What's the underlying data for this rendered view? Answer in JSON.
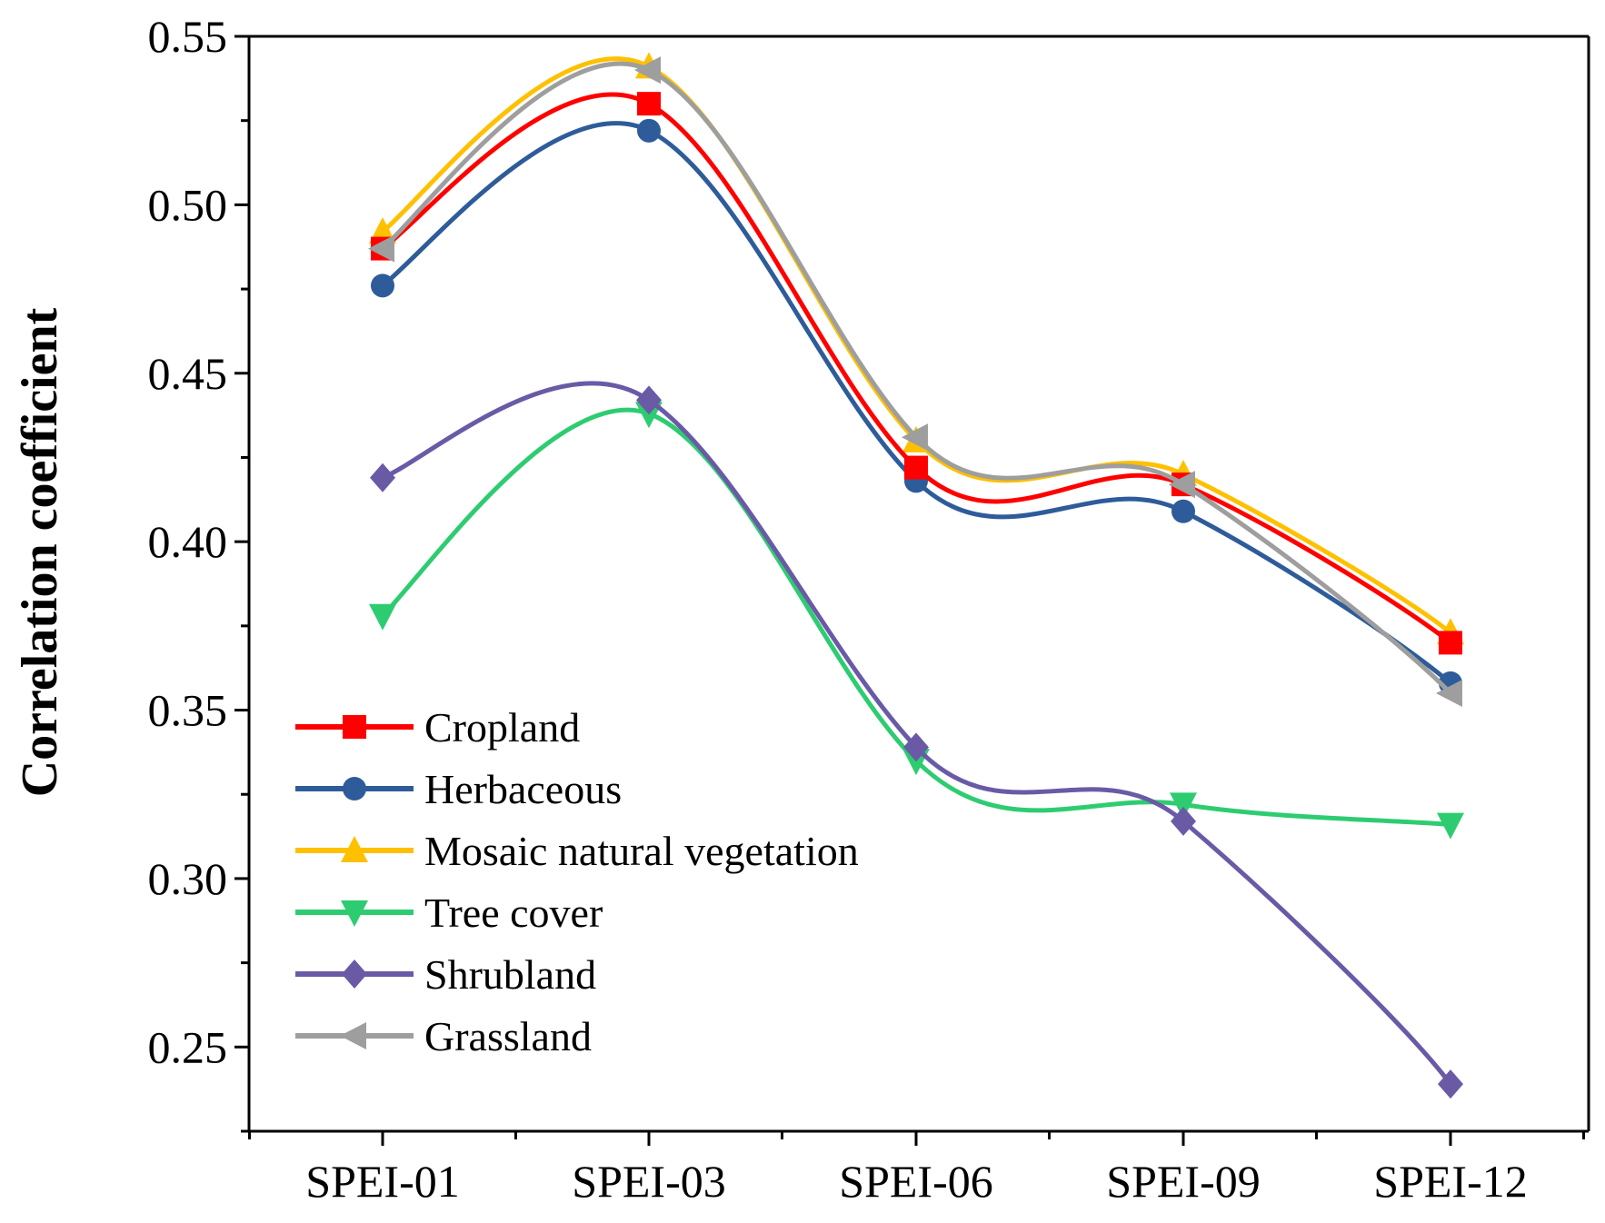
{
  "chart_data": {
    "type": "line",
    "title": "",
    "xlabel": "",
    "ylabel": "Correlation coefficient",
    "categories": [
      "SPEI-01",
      "SPEI-03",
      "SPEI-06",
      "SPEI-09",
      "SPEI-12"
    ],
    "ylim": [
      0.225,
      0.55
    ],
    "yticks": [
      0.25,
      0.3,
      0.35,
      0.4,
      0.45,
      0.5,
      0.55
    ],
    "ytick_labels": [
      "0.25",
      "0.30",
      "0.35",
      "0.40",
      "0.45",
      "0.50",
      "0.55"
    ],
    "grid": false,
    "legend_position": "lower-left",
    "series": [
      {
        "name": "Cropland",
        "color": "#ff0000",
        "marker": "square",
        "values": [
          0.487,
          0.53,
          0.422,
          0.417,
          0.37
        ]
      },
      {
        "name": "Herbaceous",
        "color": "#2e5c9a",
        "marker": "circle",
        "values": [
          0.476,
          0.522,
          0.418,
          0.409,
          0.358
        ]
      },
      {
        "name": "Mosaic natural vegetation",
        "color": "#ffc000",
        "marker": "triangle-up",
        "values": [
          0.492,
          0.541,
          0.43,
          0.42,
          0.373
        ]
      },
      {
        "name": "Tree cover",
        "color": "#2ecc71",
        "marker": "triangle-down",
        "values": [
          0.378,
          0.438,
          0.335,
          0.322,
          0.316
        ]
      },
      {
        "name": "Shrubland",
        "color": "#6a5aa6",
        "marker": "diamond",
        "values": [
          0.419,
          0.442,
          0.339,
          0.317,
          0.239
        ]
      },
      {
        "name": "Grassland",
        "color": "#9e9e9e",
        "marker": "triangle-left",
        "values": [
          0.487,
          0.54,
          0.431,
          0.417,
          0.355
        ]
      }
    ]
  }
}
